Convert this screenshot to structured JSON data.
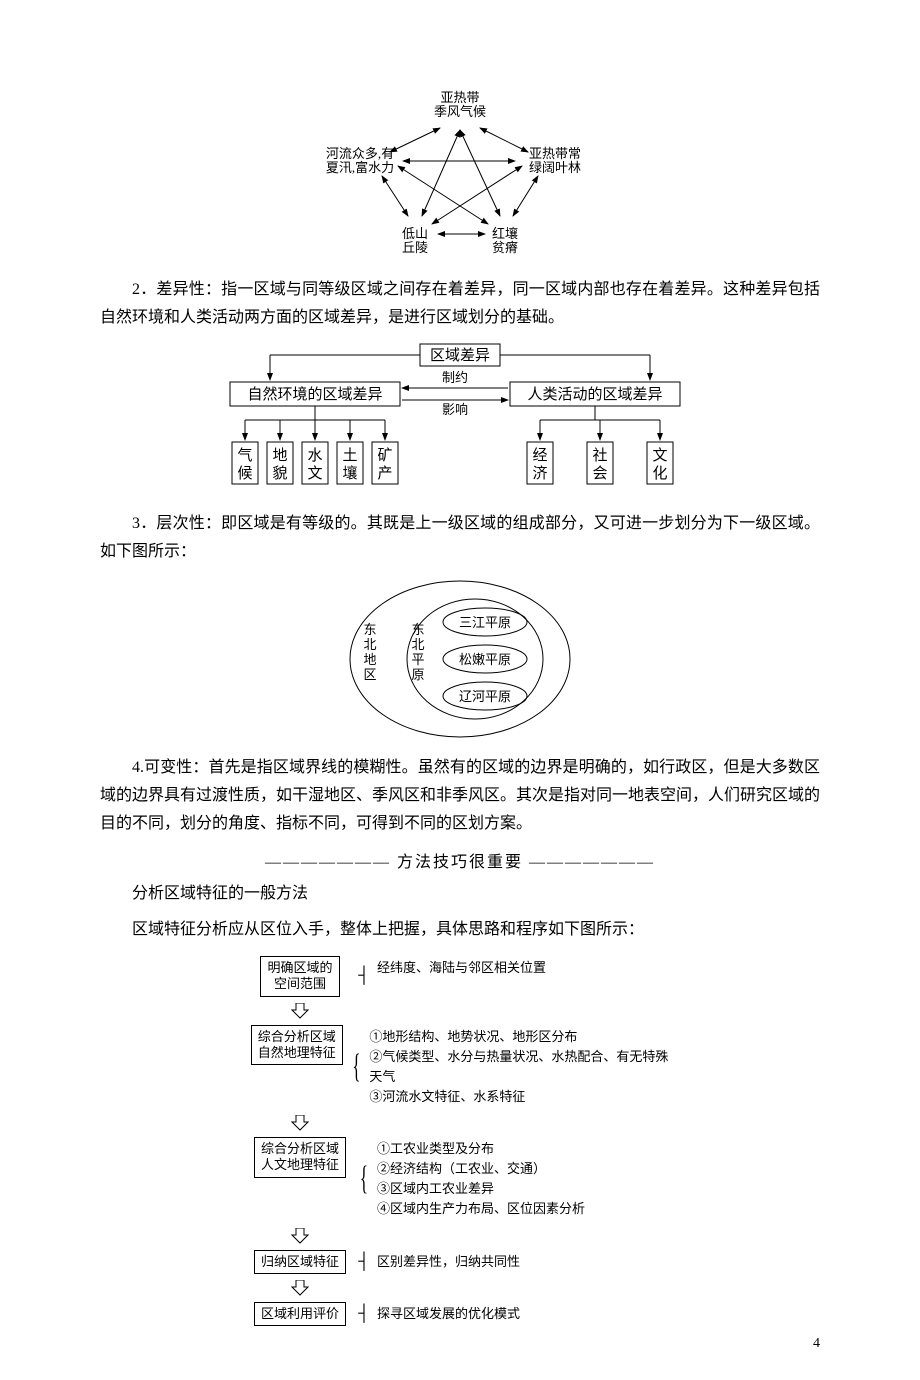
{
  "colors": {
    "text": "#000000",
    "bg": "#ffffff",
    "line": "#000000"
  },
  "fonts": {
    "body_pt": 16,
    "small_pt": 13
  },
  "hex_diagram": {
    "type": "network",
    "nodes": {
      "top": "亚热带\n季风气候",
      "right": "亚热带常\n绿阔叶林",
      "bottom_right": "红壤\n贫瘠",
      "bottom_left": "低山\n丘陵",
      "left": "河流众多,有\n夏汛,富水力"
    }
  },
  "para2": "2．差异性：指一区域与同等级区域之间存在着差异，同一区域内部也存在着差异。这种差异包括自然环境和人类活动两方面的区域差异，是进行区域划分的基础。",
  "tree_diagram": {
    "type": "tree",
    "root": "区域差异",
    "mid_top": "制约",
    "mid_bottom": "影响",
    "left_parent": "自然环境的区域差异",
    "right_parent": "人类活动的区域差异",
    "left_children": [
      "气\n候",
      "地\n貌",
      "水\n文",
      "土\n壤",
      "矿\n产"
    ],
    "right_children": [
      "经\n济",
      "社\n会",
      "文\n化"
    ]
  },
  "para3": "3．层次性：即区域是有等级的。其既是上一级区域的组成部分，又可进一步划分为下一级区域。如下图所示：",
  "oval_diagram": {
    "type": "network",
    "outer": "东北地区",
    "mid": "东北平原",
    "inner": [
      "三江平原",
      "松嫩平原",
      "辽河平原"
    ]
  },
  "para4": "4.可变性：首先是指区域界线的模糊性。虽然有的区域的边界是明确的，如行政区，但是大多数区域的边界具有过渡性质，如干湿地区、季风区和非季风区。其次是指对同一地表空间，人们研究区域的目的不同，划分的角度、指标不同，可得到不同的区划方案。",
  "divider": "——————— 方法技巧很重要 ———————",
  "para5a": "分析区域特征的一般方法",
  "para5b": "区域特征分析应从区位入手，整体上把握，具体思路和程序如下图所示：",
  "flowchart": {
    "type": "flowchart",
    "steps": [
      {
        "box": "明确区域的\n空间范围",
        "right": [
          "经纬度、海陆与邻区相关位置"
        ]
      },
      {
        "box": "综合分析区域\n自然地理特征",
        "right": [
          "①地形结构、地势状况、地形区分布",
          "②气候类型、水分与热量状况、水热配合、有无特殊天气",
          "③河流水文特征、水系特征"
        ]
      },
      {
        "box": "综合分析区域\n人文地理特征",
        "right": [
          "①工农业类型及分布",
          "②经济结构（工农业、交通）",
          "③区域内工农业差异",
          "④区域内生产力布局、区位因素分析"
        ]
      },
      {
        "box": "归纳区域特征",
        "right": [
          "区别差异性，归纳共同性"
        ]
      },
      {
        "box": "区域利用评价",
        "right": [
          "探寻区域发展的优化模式"
        ]
      }
    ]
  },
  "page_number": "4"
}
